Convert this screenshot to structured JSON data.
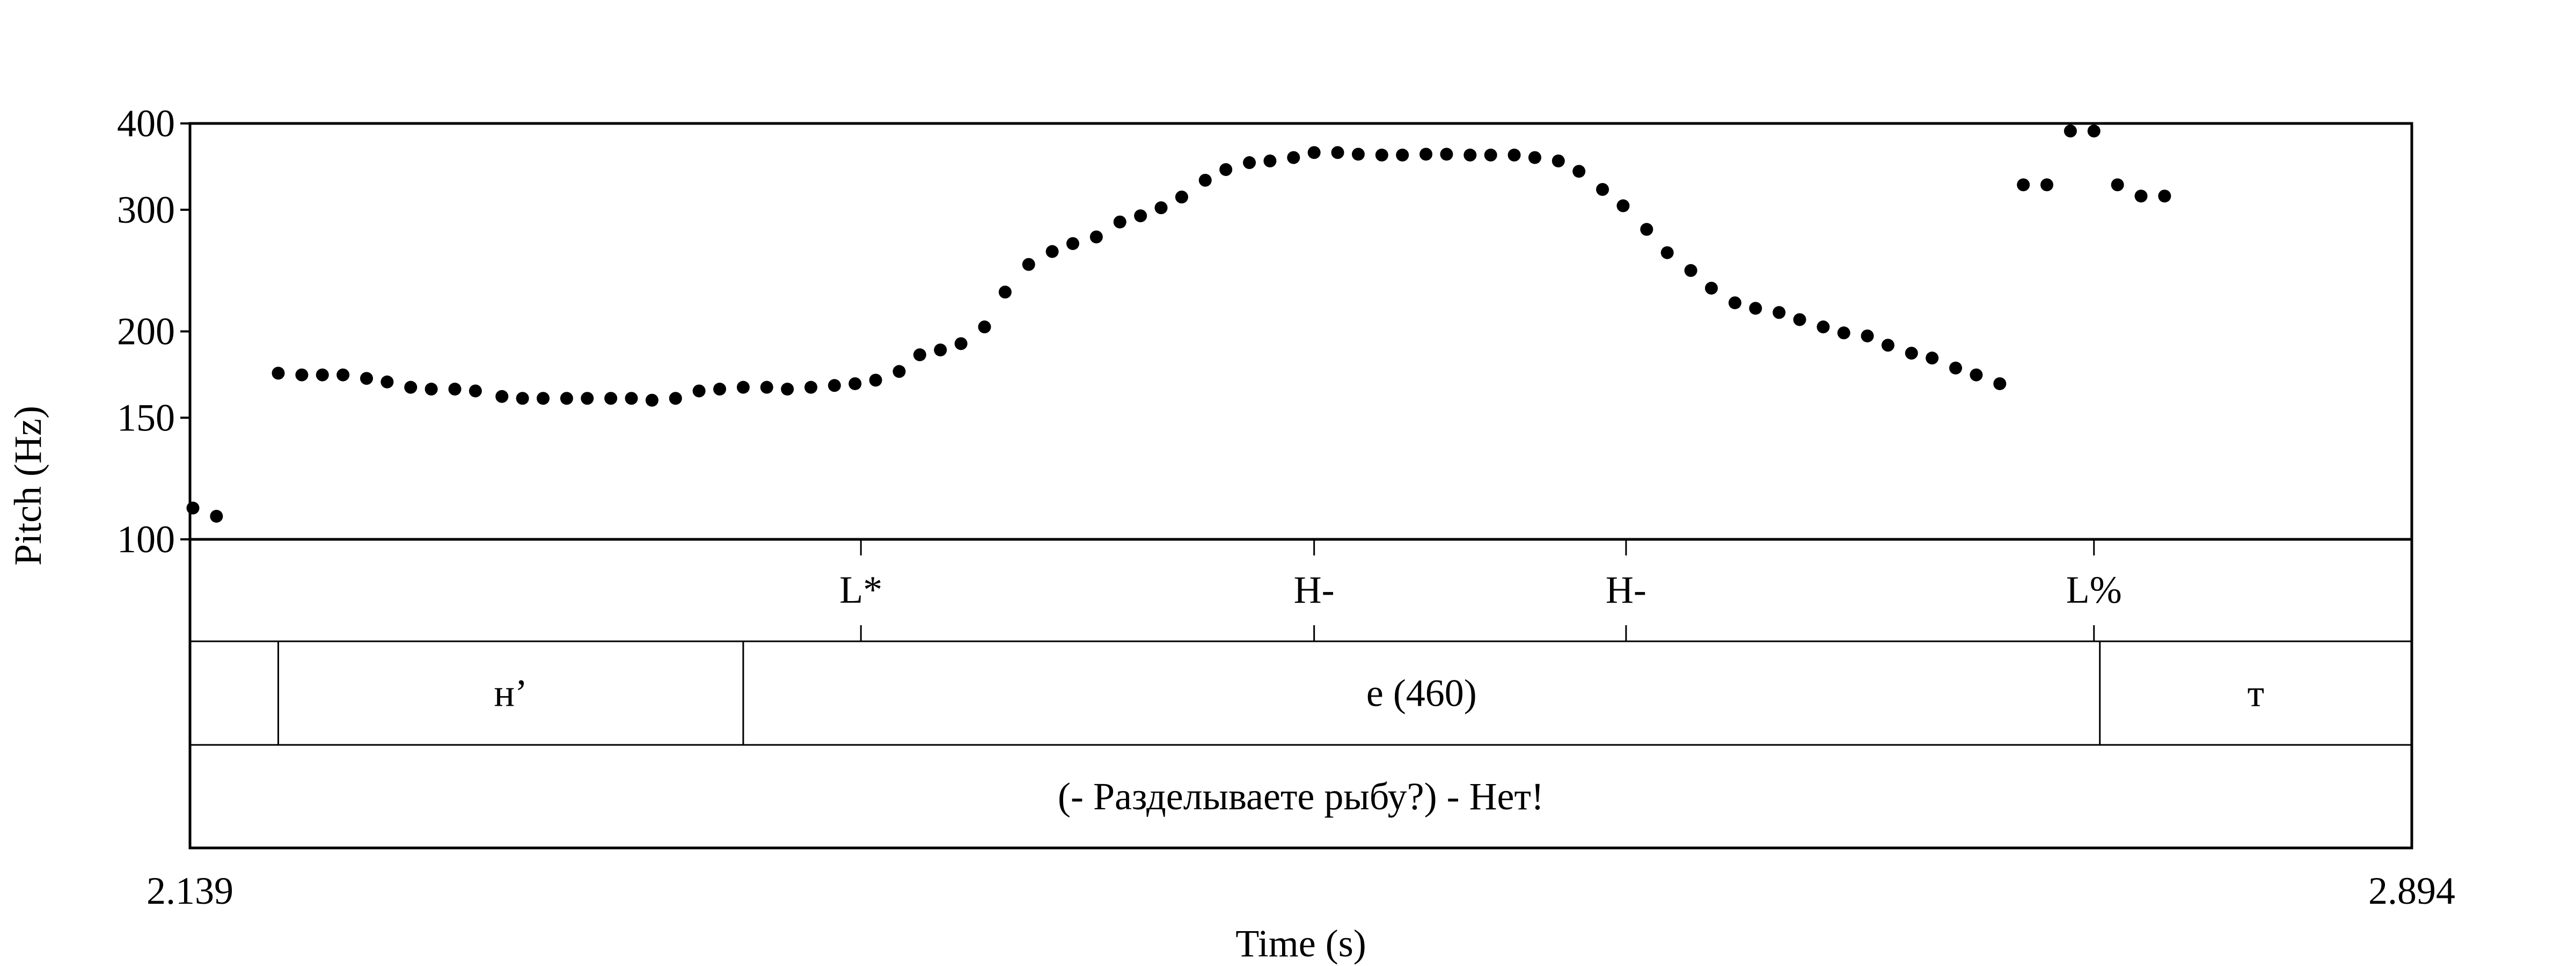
{
  "chart_data": {
    "type": "scatter",
    "xlabel": "Time (s)",
    "ylabel": "Pitch (Hz)",
    "xlim": [
      2.139,
      2.894
    ],
    "ylim": [
      100,
      400
    ],
    "y_scale": "log",
    "yticks": [
      "100",
      "150",
      "200",
      "300",
      "400"
    ],
    "yticks_values": [
      100,
      150,
      200,
      300,
      400
    ],
    "xtick_labels": [
      "2.139",
      "2.894"
    ],
    "grid": false,
    "points": [
      {
        "x": 2.14,
        "y": 111
      },
      {
        "x": 2.148,
        "y": 108
      },
      {
        "x": 2.169,
        "y": 174
      },
      {
        "x": 2.177,
        "y": 173
      },
      {
        "x": 2.184,
        "y": 173
      },
      {
        "x": 2.191,
        "y": 173
      },
      {
        "x": 2.199,
        "y": 171
      },
      {
        "x": 2.206,
        "y": 169
      },
      {
        "x": 2.214,
        "y": 166
      },
      {
        "x": 2.221,
        "y": 165
      },
      {
        "x": 2.229,
        "y": 165
      },
      {
        "x": 2.236,
        "y": 164
      },
      {
        "x": 2.245,
        "y": 161
      },
      {
        "x": 2.252,
        "y": 160
      },
      {
        "x": 2.259,
        "y": 160
      },
      {
        "x": 2.267,
        "y": 160
      },
      {
        "x": 2.274,
        "y": 160
      },
      {
        "x": 2.282,
        "y": 160
      },
      {
        "x": 2.289,
        "y": 160
      },
      {
        "x": 2.296,
        "y": 159
      },
      {
        "x": 2.304,
        "y": 160
      },
      {
        "x": 2.312,
        "y": 164
      },
      {
        "x": 2.319,
        "y": 165
      },
      {
        "x": 2.327,
        "y": 166
      },
      {
        "x": 2.335,
        "y": 166
      },
      {
        "x": 2.342,
        "y": 165
      },
      {
        "x": 2.35,
        "y": 166
      },
      {
        "x": 2.358,
        "y": 167
      },
      {
        "x": 2.365,
        "y": 168
      },
      {
        "x": 2.372,
        "y": 170
      },
      {
        "x": 2.38,
        "y": 175
      },
      {
        "x": 2.387,
        "y": 185
      },
      {
        "x": 2.394,
        "y": 188
      },
      {
        "x": 2.401,
        "y": 192
      },
      {
        "x": 2.409,
        "y": 203
      },
      {
        "x": 2.416,
        "y": 228
      },
      {
        "x": 2.424,
        "y": 250
      },
      {
        "x": 2.432,
        "y": 261
      },
      {
        "x": 2.439,
        "y": 268
      },
      {
        "x": 2.447,
        "y": 274
      },
      {
        "x": 2.455,
        "y": 288
      },
      {
        "x": 2.462,
        "y": 294
      },
      {
        "x": 2.469,
        "y": 302
      },
      {
        "x": 2.476,
        "y": 313
      },
      {
        "x": 2.484,
        "y": 331
      },
      {
        "x": 2.491,
        "y": 343
      },
      {
        "x": 2.499,
        "y": 351
      },
      {
        "x": 2.506,
        "y": 353
      },
      {
        "x": 2.514,
        "y": 357
      },
      {
        "x": 2.521,
        "y": 363
      },
      {
        "x": 2.529,
        "y": 363
      },
      {
        "x": 2.536,
        "y": 361
      },
      {
        "x": 2.544,
        "y": 360
      },
      {
        "x": 2.551,
        "y": 360
      },
      {
        "x": 2.559,
        "y": 361
      },
      {
        "x": 2.566,
        "y": 361
      },
      {
        "x": 2.574,
        "y": 360
      },
      {
        "x": 2.581,
        "y": 360
      },
      {
        "x": 2.589,
        "y": 360
      },
      {
        "x": 2.596,
        "y": 357
      },
      {
        "x": 2.604,
        "y": 353
      },
      {
        "x": 2.611,
        "y": 341
      },
      {
        "x": 2.619,
        "y": 321
      },
      {
        "x": 2.626,
        "y": 304
      },
      {
        "x": 2.634,
        "y": 281
      },
      {
        "x": 2.641,
        "y": 260
      },
      {
        "x": 2.649,
        "y": 245
      },
      {
        "x": 2.656,
        "y": 231
      },
      {
        "x": 2.664,
        "y": 220
      },
      {
        "x": 2.671,
        "y": 216
      },
      {
        "x": 2.679,
        "y": 213
      },
      {
        "x": 2.686,
        "y": 208
      },
      {
        "x": 2.694,
        "y": 203
      },
      {
        "x": 2.701,
        "y": 199
      },
      {
        "x": 2.709,
        "y": 197
      },
      {
        "x": 2.716,
        "y": 191
      },
      {
        "x": 2.724,
        "y": 186
      },
      {
        "x": 2.731,
        "y": 183
      },
      {
        "x": 2.739,
        "y": 177
      },
      {
        "x": 2.746,
        "y": 173
      },
      {
        "x": 2.754,
        "y": 168
      },
      {
        "x": 2.762,
        "y": 326
      },
      {
        "x": 2.77,
        "y": 326
      },
      {
        "x": 2.778,
        "y": 390
      },
      {
        "x": 2.786,
        "y": 390
      },
      {
        "x": 2.794,
        "y": 326
      },
      {
        "x": 2.802,
        "y": 314
      },
      {
        "x": 2.81,
        "y": 314
      }
    ],
    "tiers": [
      {
        "kind": "point",
        "points": [
          {
            "time": 2.367,
            "label": "L*"
          },
          {
            "time": 2.521,
            "label": "H-"
          },
          {
            "time": 2.627,
            "label": "H-"
          },
          {
            "time": 2.786,
            "label": "L%"
          }
        ]
      },
      {
        "kind": "interval",
        "intervals": [
          {
            "start": 2.139,
            "end": 2.169,
            "label": ""
          },
          {
            "start": 2.169,
            "end": 2.327,
            "label": "н’"
          },
          {
            "start": 2.327,
            "end": 2.788,
            "label": "е (460)"
          },
          {
            "start": 2.788,
            "end": 2.894,
            "label": "т"
          }
        ]
      },
      {
        "kind": "interval",
        "intervals": [
          {
            "start": 2.139,
            "end": 2.894,
            "label": "(- Разделываете рыбу?) - Нет!"
          }
        ]
      }
    ]
  }
}
